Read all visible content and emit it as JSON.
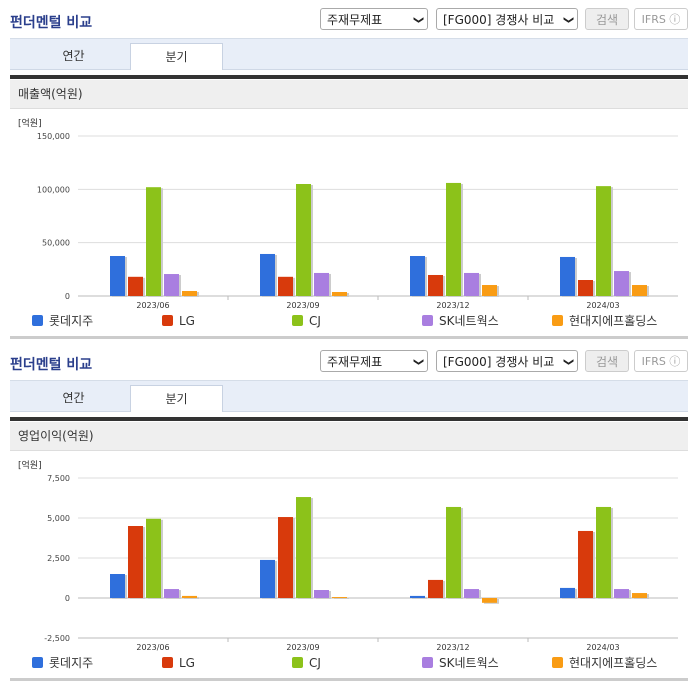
{
  "blocks": [
    {
      "title": "펀더멘털 비교",
      "select1": "주재무제표",
      "select2": "[FG000] 경쟁사 비교",
      "search": "검색",
      "ifrs": "IFRS",
      "tabs": [
        "연간",
        "분기"
      ],
      "section": "매출액(억원)"
    },
    {
      "title": "펀더멘털 비교",
      "select1": "주재무제표",
      "select2": "[FG000] 경쟁사 비교",
      "search": "검색",
      "ifrs": "IFRS",
      "tabs": [
        "연간",
        "분기"
      ],
      "section": "영업이익(억원)"
    }
  ],
  "chart_data": [
    {
      "type": "bar",
      "title": "매출액(억원)",
      "unit": "[억원]",
      "categories": [
        "2023/06",
        "2023/09",
        "2023/12",
        "2024/03"
      ],
      "ylim": [
        0,
        150000
      ],
      "yticks": [
        "0",
        "50,000",
        "100,000",
        "150,000"
      ],
      "ytick_values": [
        0,
        50000,
        100000,
        150000
      ],
      "series": [
        {
          "name": "롯데지주",
          "color": "#2f6fdc",
          "values": [
            37500,
            39400,
            37500,
            36600
          ]
        },
        {
          "name": "LG",
          "color": "#d83a0c",
          "values": [
            18000,
            18000,
            19700,
            15000
          ]
        },
        {
          "name": "CJ",
          "color": "#8cc21a",
          "values": [
            102000,
            105000,
            106000,
            103000
          ]
        },
        {
          "name": "SK네트웍스",
          "color": "#a97ee0",
          "values": [
            20600,
            21600,
            21600,
            23400
          ]
        },
        {
          "name": "현대지에프홀딩스",
          "color": "#f99c14",
          "values": [
            4700,
            3750,
            10300,
            10300
          ]
        }
      ]
    },
    {
      "type": "bar",
      "title": "영업이익(억원)",
      "unit": "[억원]",
      "categories": [
        "2023/06",
        "2023/09",
        "2023/12",
        "2024/03"
      ],
      "ylim": [
        -2500,
        7500
      ],
      "yticks": [
        "-2,500",
        "0",
        "2,500",
        "5,000",
        "7,500"
      ],
      "ytick_values": [
        -2500,
        0,
        2500,
        5000,
        7500
      ],
      "series": [
        {
          "name": "롯데지주",
          "color": "#2f6fdc",
          "values": [
            1500,
            2380,
            130,
            630
          ]
        },
        {
          "name": "LG",
          "color": "#d83a0c",
          "values": [
            4500,
            5060,
            1130,
            4190
          ]
        },
        {
          "name": "CJ",
          "color": "#8cc21a",
          "values": [
            4950,
            6310,
            5690,
            5690
          ]
        },
        {
          "name": "SK네트웍스",
          "color": "#a97ee0",
          "values": [
            560,
            500,
            560,
            560
          ]
        },
        {
          "name": "현대지에프홀딩스",
          "color": "#f99c14",
          "values": [
            130,
            60,
            -300,
            310
          ]
        }
      ]
    }
  ]
}
